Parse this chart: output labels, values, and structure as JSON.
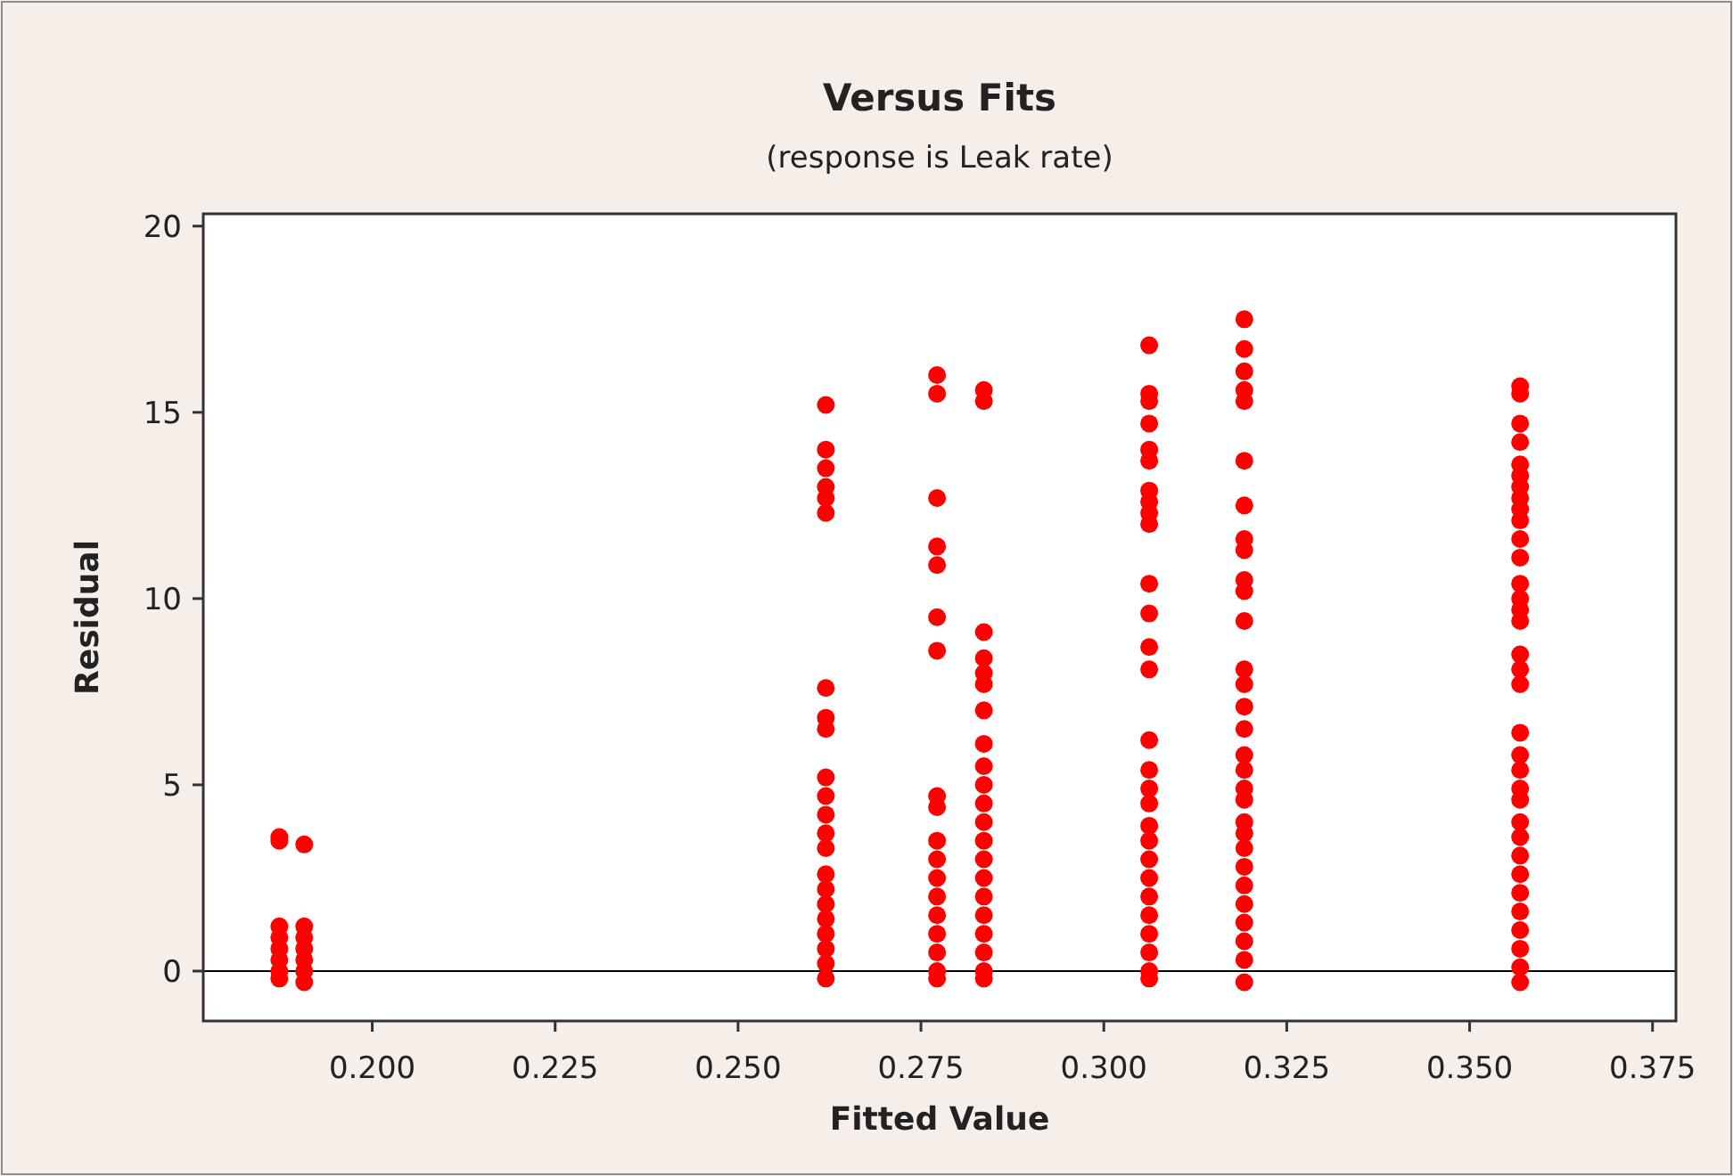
{
  "chart_data": {
    "type": "scatter",
    "title": "Versus Fits",
    "subtitle": "(response is Leak rate)",
    "xlabel": "Fitted Value",
    "ylabel": "Residual",
    "marker": "circle",
    "grid": false,
    "xlim": [
      0.1769,
      0.3782
    ],
    "ylim": [
      -1.34,
      20.33
    ],
    "xticks": [
      {
        "value": 0.2,
        "label": "0.200"
      },
      {
        "value": 0.225,
        "label": "0.225"
      },
      {
        "value": 0.25,
        "label": "0.250"
      },
      {
        "value": 0.275,
        "label": "0.275"
      },
      {
        "value": 0.3,
        "label": "0.300"
      },
      {
        "value": 0.325,
        "label": "0.325"
      },
      {
        "value": 0.35,
        "label": "0.350"
      },
      {
        "value": 0.375,
        "label": "0.375"
      }
    ],
    "yticks": [
      0,
      5,
      10,
      15,
      20
    ],
    "ref_lines": [
      {
        "axis": "y",
        "value": 0,
        "color": "#000000"
      }
    ],
    "series": [
      {
        "color": "#ff0000",
        "x": [
          0.1873,
          0.1873,
          0.1873,
          0.1873,
          0.1873,
          0.1873,
          0.1873,
          0.1873,
          0.1907,
          0.1907,
          0.1907,
          0.1907,
          0.1907,
          0.1907,
          0.1907,
          0.262,
          0.262,
          0.262,
          0.262,
          0.262,
          0.262,
          0.262,
          0.262,
          0.262,
          0.262,
          0.262,
          0.262,
          0.262,
          0.262,
          0.262,
          0.262,
          0.262,
          0.262,
          0.262,
          0.262,
          0.262,
          0.262,
          0.2772,
          0.2772,
          0.2772,
          0.2772,
          0.2772,
          0.2772,
          0.2772,
          0.2772,
          0.2772,
          0.2772,
          0.2772,
          0.2772,
          0.2772,
          0.2772,
          0.2772,
          0.2772,
          0.2772,
          0.2772,
          0.2836,
          0.2836,
          0.2836,
          0.2836,
          0.2836,
          0.2836,
          0.2836,
          0.2836,
          0.2836,
          0.2836,
          0.2836,
          0.2836,
          0.2836,
          0.2836,
          0.2836,
          0.2836,
          0.2836,
          0.2836,
          0.2836,
          0.2836,
          0.2836,
          0.3062,
          0.3062,
          0.3062,
          0.3062,
          0.3062,
          0.3062,
          0.3062,
          0.3062,
          0.3062,
          0.3062,
          0.3062,
          0.3062,
          0.3062,
          0.3062,
          0.3062,
          0.3062,
          0.3062,
          0.3062,
          0.3062,
          0.3062,
          0.3062,
          0.3062,
          0.3062,
          0.3062,
          0.3062,
          0.3062,
          0.3062,
          0.3062,
          0.3192,
          0.3192,
          0.3192,
          0.3192,
          0.3192,
          0.3192,
          0.3192,
          0.3192,
          0.3192,
          0.3192,
          0.3192,
          0.3192,
          0.3192,
          0.3192,
          0.3192,
          0.3192,
          0.3192,
          0.3192,
          0.3192,
          0.3192,
          0.3192,
          0.3192,
          0.3192,
          0.3192,
          0.3192,
          0.3192,
          0.3192,
          0.3192,
          0.3192,
          0.3192,
          0.3569,
          0.3569,
          0.3569,
          0.3569,
          0.3569,
          0.3569,
          0.3569,
          0.3569,
          0.3569,
          0.3569,
          0.3569,
          0.3569,
          0.3569,
          0.3569,
          0.3569,
          0.3569,
          0.3569,
          0.3569,
          0.3569,
          0.3569,
          0.3569,
          0.3569,
          0.3569,
          0.3569,
          0.3569,
          0.3569,
          0.3569,
          0.3569,
          0.3569,
          0.3569,
          0.3569,
          0.3569,
          0.3569,
          0.3569
        ],
        "values": [
          3.6,
          3.5,
          1.2,
          0.9,
          0.6,
          0.3,
          0,
          -0.2,
          3.4,
          1.2,
          0.9,
          0.6,
          0.3,
          0,
          -0.3,
          15.2,
          14.0,
          13.5,
          13.0,
          12.7,
          12.3,
          7.6,
          6.8,
          6.5,
          5.2,
          4.7,
          4.2,
          3.7,
          3.3,
          2.6,
          2.2,
          1.8,
          1.4,
          1.0,
          0.6,
          0.2,
          -0.2,
          16.0,
          15.5,
          12.7,
          11.4,
          10.9,
          9.5,
          8.6,
          4.7,
          4.4,
          3.5,
          3.0,
          2.5,
          2.0,
          1.5,
          1.0,
          0.5,
          0,
          -0.2,
          15.6,
          15.3,
          9.1,
          8.4,
          8.0,
          7.7,
          7.0,
          6.1,
          5.5,
          5.0,
          4.5,
          4.0,
          3.5,
          3.0,
          2.5,
          2.0,
          1.5,
          1.0,
          0.5,
          0,
          -0.2,
          16.8,
          15.5,
          15.3,
          14.7,
          14.0,
          13.7,
          12.9,
          12.6,
          12.3,
          12.0,
          10.4,
          9.6,
          8.7,
          8.1,
          6.2,
          5.4,
          4.9,
          4.5,
          3.9,
          3.5,
          3.0,
          2.5,
          2.0,
          1.5,
          1.0,
          0.5,
          0,
          -0.2,
          17.5,
          16.7,
          16.1,
          15.6,
          15.3,
          13.7,
          12.5,
          11.6,
          11.3,
          10.5,
          10.2,
          9.4,
          8.1,
          7.7,
          7.1,
          6.5,
          5.8,
          5.4,
          4.9,
          4.6,
          4.0,
          3.7,
          3.3,
          2.8,
          2.3,
          1.8,
          1.3,
          0.8,
          0.3,
          -0.3,
          15.7,
          15.5,
          14.7,
          14.2,
          13.6,
          13.3,
          13.0,
          12.7,
          12.4,
          12.1,
          11.6,
          11.1,
          10.4,
          10.0,
          9.7,
          9.4,
          8.5,
          8.1,
          7.7,
          6.4,
          5.8,
          5.4,
          4.9,
          4.6,
          4.0,
          3.6,
          3.1,
          2.6,
          2.1,
          1.6,
          1.1,
          0.6,
          0.1,
          -0.3
        ]
      }
    ]
  }
}
